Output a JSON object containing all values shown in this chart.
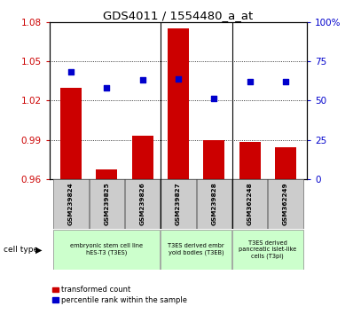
{
  "title": "GDS4011 / 1554480_a_at",
  "samples": [
    "GSM239824",
    "GSM239825",
    "GSM239826",
    "GSM239827",
    "GSM239828",
    "GSM362248",
    "GSM362249"
  ],
  "bar_values": [
    1.03,
    0.967,
    0.993,
    1.075,
    0.99,
    0.988,
    0.984
  ],
  "dot_values": [
    0.68,
    0.58,
    0.63,
    0.635,
    0.515,
    0.62,
    0.62
  ],
  "ylim_left": [
    0.96,
    1.08
  ],
  "ylim_right": [
    0.0,
    1.0
  ],
  "yticks_left": [
    0.96,
    0.99,
    1.02,
    1.05,
    1.08
  ],
  "yticks_right": [
    0.0,
    0.25,
    0.5,
    0.75,
    1.0
  ],
  "ytick_labels_right": [
    "0",
    "25",
    "50",
    "75",
    "100%"
  ],
  "bar_color": "#cc0000",
  "dot_color": "#0000cc",
  "bar_width": 0.6,
  "cell_type_label": "cell type",
  "legend_bar_label": "transformed count",
  "legend_dot_label": "percentile rank within the sample",
  "tick_label_color_left": "#cc0000",
  "tick_label_color_right": "#0000cc",
  "group_dividers": [
    2.5,
    4.5
  ],
  "group_configs": [
    {
      "start": 0,
      "end": 2,
      "label": "embryonic stem cell line\nhES-T3 (T3ES)"
    },
    {
      "start": 3,
      "end": 4,
      "label": "T3ES derived embr\nyoid bodies (T3EB)"
    },
    {
      "start": 5,
      "end": 6,
      "label": "T3ES derived\npancreatic islet-like\ncells (T3pi)"
    }
  ],
  "group_color": "#ccffcc"
}
